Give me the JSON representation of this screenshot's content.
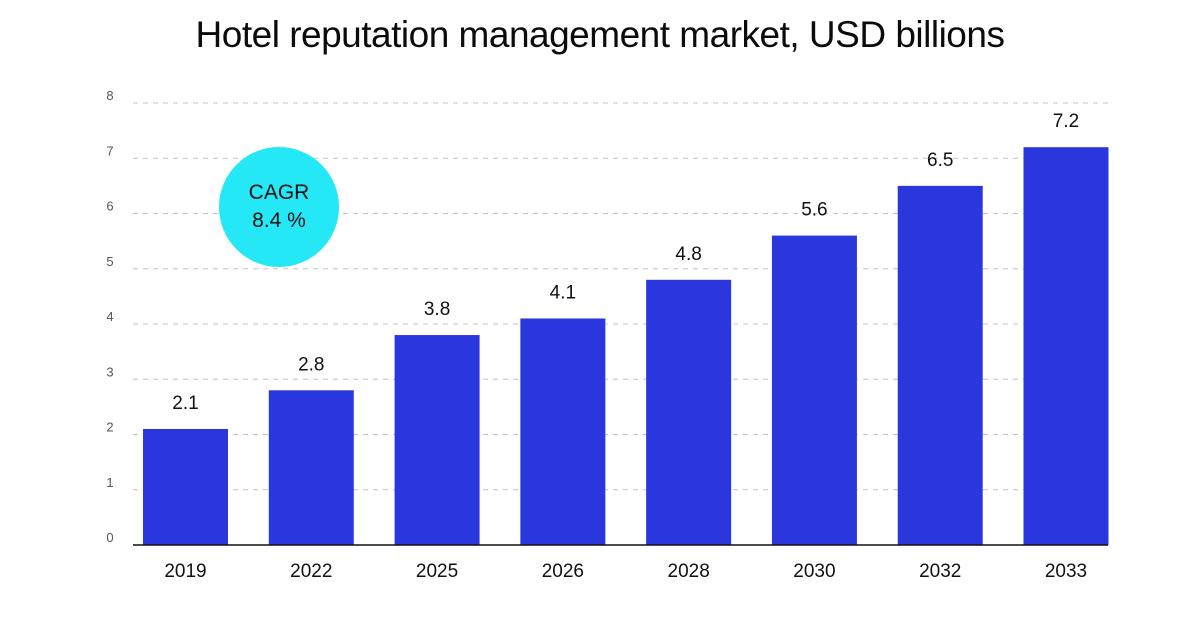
{
  "chart_data": {
    "type": "bar",
    "title": "Hotel reputation management market, USD billions",
    "categories": [
      "2019",
      "2022",
      "2025",
      "2026",
      "2028",
      "2030",
      "2032",
      "2033"
    ],
    "values": [
      2.1,
      2.8,
      3.8,
      4.1,
      4.8,
      5.6,
      6.5,
      7.2
    ],
    "ylim": [
      0,
      8
    ],
    "yticks": [
      "0",
      "1",
      "2",
      "3",
      "4",
      "5",
      "6",
      "7",
      "8"
    ],
    "xlabel": "",
    "ylabel": "",
    "grid": true,
    "bar_color": "#2a37dd",
    "annotation": {
      "line1": "CAGR",
      "line2": "8.4 %",
      "color": "#24e8f5"
    }
  }
}
